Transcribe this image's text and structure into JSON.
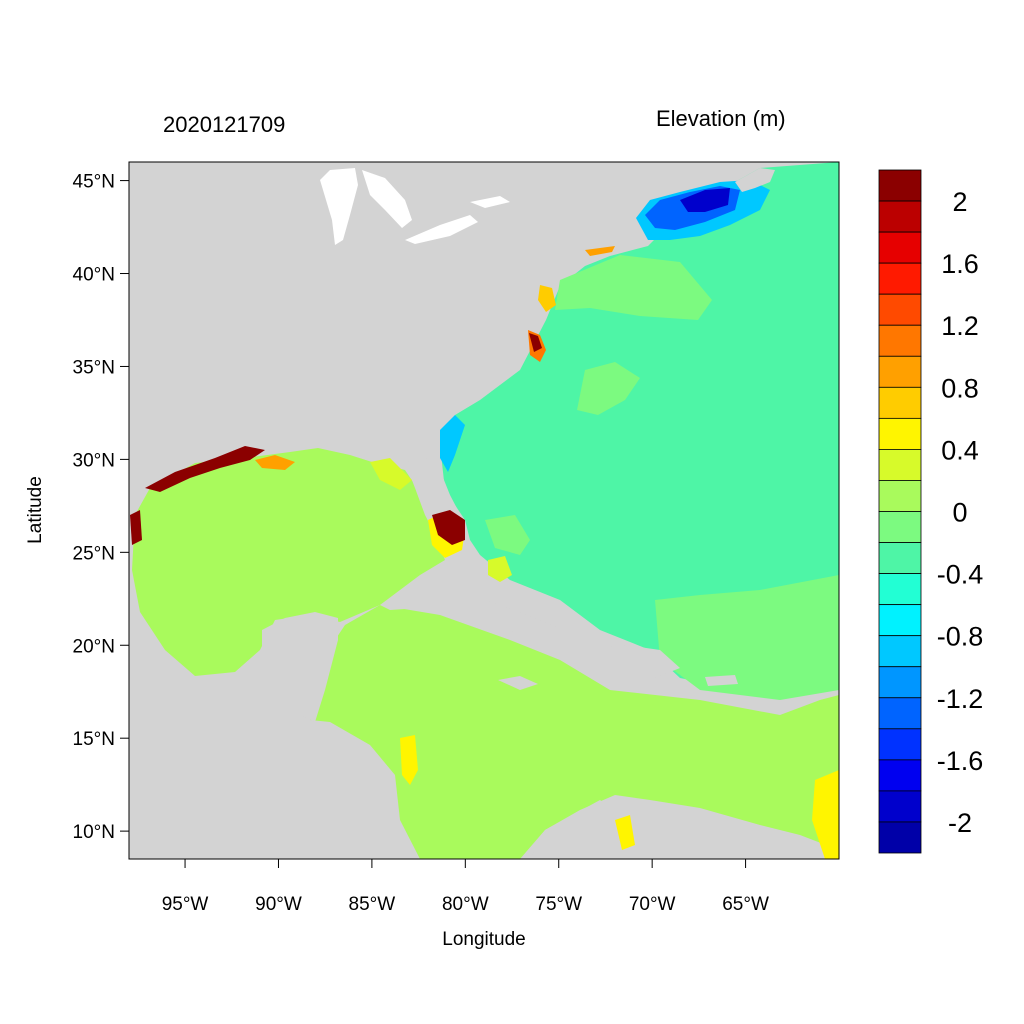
{
  "map": {
    "timestamp": "2020121709",
    "variable": "Elevation (m)",
    "x_axis_title": "Longitude",
    "y_axis_title": "Latitude",
    "lon_range": [
      -98,
      -60
    ],
    "lat_range": [
      8.5,
      46
    ],
    "lon_ticks": [
      {
        "value": -95,
        "label": "95°W"
      },
      {
        "value": -90,
        "label": "90°W"
      },
      {
        "value": -85,
        "label": "85°W"
      },
      {
        "value": -80,
        "label": "80°W"
      },
      {
        "value": -75,
        "label": "75°W"
      },
      {
        "value": -70,
        "label": "70°W"
      },
      {
        "value": -65,
        "label": "65°W"
      }
    ],
    "lat_ticks": [
      {
        "value": 45,
        "label": "45°N"
      },
      {
        "value": 40,
        "label": "40°N"
      },
      {
        "value": 35,
        "label": "35°N"
      },
      {
        "value": 30,
        "label": "30°N"
      },
      {
        "value": 25,
        "label": "25°N"
      },
      {
        "value": 20,
        "label": "20°N"
      },
      {
        "value": 15,
        "label": "15°N"
      },
      {
        "value": 10,
        "label": "10°N"
      }
    ],
    "colors": {
      "land": "#d3d3d3",
      "ocean_base": "#4ef5a6",
      "gulf": "#a9fa5c",
      "shelf": "#7cfa80"
    }
  },
  "colorbar": {
    "levels": [
      {
        "color": "#8b0000"
      },
      {
        "color": "#bb0000"
      },
      {
        "color": "#e60000"
      },
      {
        "color": "#ff1a00"
      },
      {
        "color": "#ff4a00"
      },
      {
        "color": "#ff7700"
      },
      {
        "color": "#ffa000"
      },
      {
        "color": "#ffcc00"
      },
      {
        "color": "#fff500"
      },
      {
        "color": "#d7fa2a"
      },
      {
        "color": "#a9fa5c"
      },
      {
        "color": "#7cfa80"
      },
      {
        "color": "#4ef5a6"
      },
      {
        "color": "#22ffd4"
      },
      {
        "color": "#00f2ff"
      },
      {
        "color": "#00c8ff"
      },
      {
        "color": "#0096ff"
      },
      {
        "color": "#0064ff"
      },
      {
        "color": "#0032ff"
      },
      {
        "color": "#0000f0"
      },
      {
        "color": "#0000cc"
      },
      {
        "color": "#0000a8"
      }
    ],
    "labels": [
      {
        "value": 2,
        "label": "2"
      },
      {
        "value": 1.6,
        "label": "1.6"
      },
      {
        "value": 1.2,
        "label": "1.2"
      },
      {
        "value": 0.8,
        "label": "0.8"
      },
      {
        "value": 0.4,
        "label": "0.4"
      },
      {
        "value": 0,
        "label": "0"
      },
      {
        "value": -0.4,
        "label": "-0.4"
      },
      {
        "value": -0.8,
        "label": "-0.8"
      },
      {
        "value": -1.2,
        "label": "-1.2"
      },
      {
        "value": -1.6,
        "label": "-1.6"
      },
      {
        "value": -2,
        "label": "-2"
      }
    ]
  }
}
